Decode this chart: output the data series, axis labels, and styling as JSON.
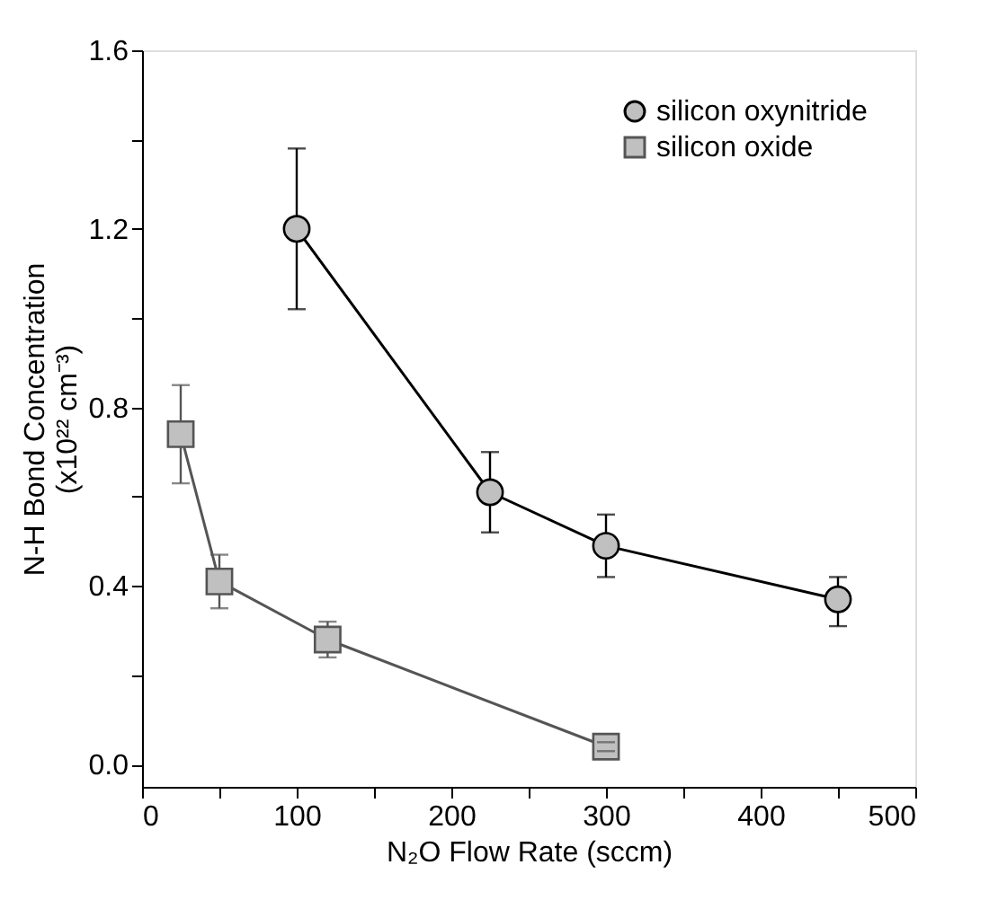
{
  "chart_data": {
    "type": "line",
    "xlabel": "N₂O Flow Rate (sccm)",
    "ylabel": "N-H Bond Concentration\n(x10²² cm⁻³)",
    "xlim": [
      0,
      500
    ],
    "ylim": [
      -0.05,
      1.6
    ],
    "xticks": [
      0,
      {
        "value": 50,
        "label": null
      },
      100,
      {
        "value": 150,
        "label": null
      },
      200,
      {
        "value": 250,
        "label": null
      },
      300,
      {
        "value": 350,
        "label": null
      },
      400,
      {
        "value": 450,
        "label": null
      },
      500
    ],
    "yticks": [
      {
        "value": 0,
        "label": "0.0"
      },
      {
        "value": 0.2,
        "label": null
      },
      {
        "value": 0.4,
        "label": "0.4"
      },
      {
        "value": 0.6,
        "label": null
      },
      {
        "value": 0.8,
        "label": "0.8"
      },
      {
        "value": 1.0,
        "label": null
      },
      {
        "value": 1.2,
        "label": "1.2"
      },
      {
        "value": 1.4,
        "label": null
      },
      {
        "value": 1.6,
        "label": "1.6"
      }
    ],
    "grid": false,
    "legend": "top right",
    "line_style": "solid",
    "series": [
      {
        "name": "silicon oxynitride",
        "color": "#000000",
        "marker": "circle",
        "x": [
          100,
          225,
          300,
          450
        ],
        "values": [
          1.2,
          0.61,
          0.49,
          0.37
        ],
        "errors": [
          [
            1.02,
            1.38
          ],
          [
            0.52,
            0.7
          ],
          [
            0.42,
            0.56
          ],
          [
            0.31,
            0.42
          ]
        ]
      },
      {
        "name": "silicon oxide",
        "color": "#555555",
        "marker": "square",
        "x": [
          25,
          50,
          120,
          300
        ],
        "values": [
          0.74,
          0.41,
          0.28,
          0.04
        ],
        "errors": [
          [
            0.63,
            0.85
          ],
          [
            0.35,
            0.47
          ],
          [
            0.24,
            0.32
          ],
          [
            0.03,
            0.05
          ]
        ]
      }
    ]
  }
}
